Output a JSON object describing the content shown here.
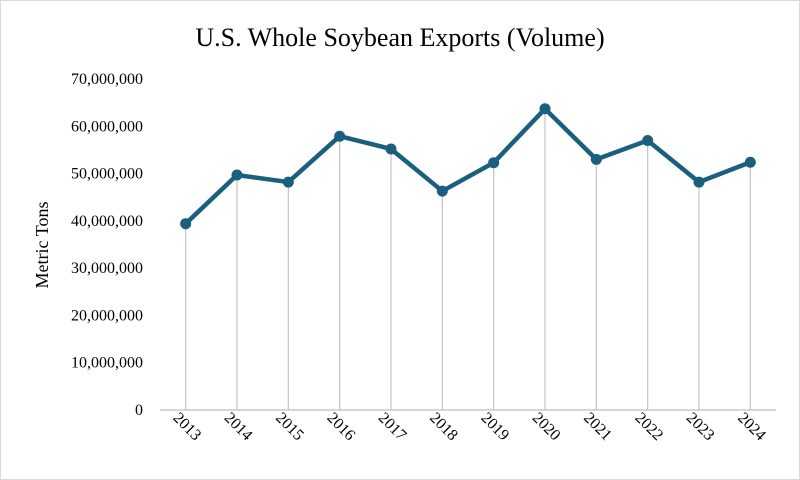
{
  "chart_data": {
    "type": "line",
    "title": "U.S. Whole Soybean Exports (Volume)",
    "ylabel": "Metric Tons",
    "xlabel": "",
    "categories": [
      "2013",
      "2014",
      "2015",
      "2016",
      "2017",
      "2018",
      "2019",
      "2020",
      "2021",
      "2022",
      "2023",
      "2024"
    ],
    "series": [
      {
        "values": [
          39400000,
          49700000,
          48200000,
          57900000,
          55200000,
          46300000,
          52300000,
          63700000,
          53000000,
          57000000,
          48200000,
          52400000
        ]
      }
    ],
    "ylim": [
      0,
      70000000
    ],
    "yticks": [
      0,
      10000000,
      20000000,
      30000000,
      40000000,
      50000000,
      60000000,
      70000000
    ],
    "ytick_labels": [
      "0",
      "10,000,000",
      "20,000,000",
      "30,000,000",
      "40,000,000",
      "50,000,000",
      "60,000,000",
      "70,000,000"
    ],
    "grid": false,
    "drop_lines": true,
    "colors": {
      "series": "#1b5f7e",
      "drop_lines": "#c8c8c8",
      "axis": "#bfbfbf"
    }
  }
}
